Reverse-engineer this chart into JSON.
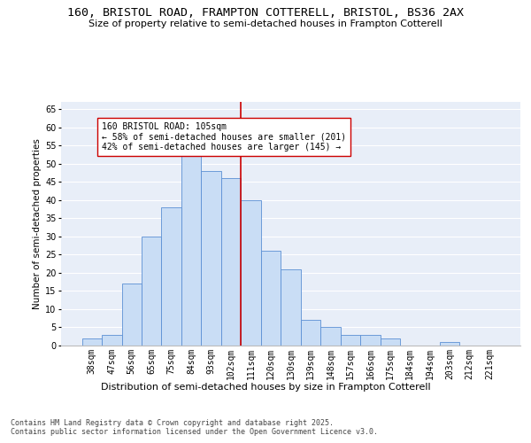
{
  "title1": "160, BRISTOL ROAD, FRAMPTON COTTERELL, BRISTOL, BS36 2AX",
  "title2": "Size of property relative to semi-detached houses in Frampton Cotterell",
  "xlabel": "Distribution of semi-detached houses by size in Frampton Cotterell",
  "ylabel": "Number of semi-detached properties",
  "categories": [
    "38sqm",
    "47sqm",
    "56sqm",
    "65sqm",
    "75sqm",
    "84sqm",
    "93sqm",
    "102sqm",
    "111sqm",
    "120sqm",
    "130sqm",
    "139sqm",
    "148sqm",
    "157sqm",
    "166sqm",
    "175sqm",
    "184sqm",
    "194sqm",
    "203sqm",
    "212sqm",
    "221sqm"
  ],
  "values": [
    2,
    3,
    17,
    30,
    38,
    54,
    48,
    46,
    40,
    26,
    21,
    7,
    5,
    3,
    3,
    2,
    0,
    0,
    1,
    0,
    0
  ],
  "bar_color": "#c9ddf5",
  "bar_edge_color": "#5b8fd4",
  "vline_color": "#cc0000",
  "annotation_text": "160 BRISTOL ROAD: 105sqm\n← 58% of semi-detached houses are smaller (201)\n42% of semi-detached houses are larger (145) →",
  "annotation_box_color": "#ffffff",
  "annotation_box_edge_color": "#cc0000",
  "ylim": [
    0,
    67
  ],
  "yticks": [
    0,
    5,
    10,
    15,
    20,
    25,
    30,
    35,
    40,
    45,
    50,
    55,
    60,
    65
  ],
  "bg_color": "#e8eef8",
  "grid_color": "#ffffff",
  "footer": "Contains HM Land Registry data © Crown copyright and database right 2025.\nContains public sector information licensed under the Open Government Licence v3.0.",
  "title1_fontsize": 9.5,
  "title2_fontsize": 8,
  "xlabel_fontsize": 8,
  "ylabel_fontsize": 7.5,
  "tick_fontsize": 7,
  "annotation_fontsize": 7,
  "footer_fontsize": 6
}
